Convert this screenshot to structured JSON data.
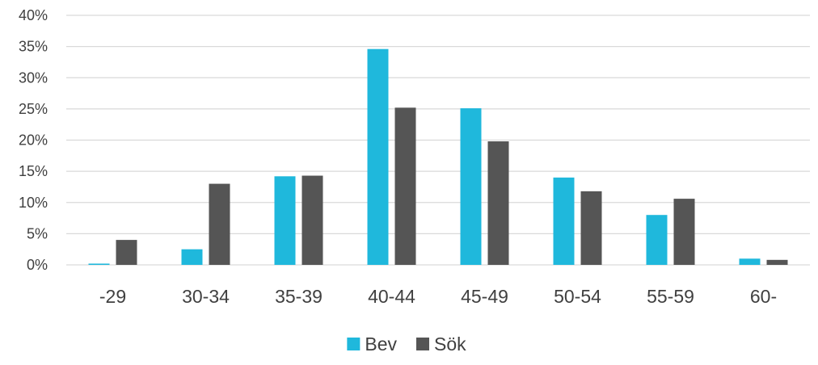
{
  "chart_data": {
    "type": "bar",
    "categories": [
      "-29",
      "30-34",
      "35-39",
      "40-44",
      "45-49",
      "50-54",
      "55-59",
      "60-"
    ],
    "series": [
      {
        "name": "Bev",
        "color": "#1fb8dc",
        "values": [
          0.2,
          2.5,
          14.2,
          34.6,
          25.1,
          14.0,
          8.0,
          1.0
        ]
      },
      {
        "name": "Sök",
        "color": "#555555",
        "values": [
          4.0,
          13.0,
          14.3,
          25.2,
          19.8,
          11.8,
          10.6,
          0.8
        ]
      }
    ],
    "ylim": [
      0,
      40
    ],
    "yticks": [
      0,
      5,
      10,
      15,
      20,
      25,
      30,
      35,
      40
    ],
    "ytick_labels": [
      "0%",
      "5%",
      "10%",
      "15%",
      "20%",
      "25%",
      "30%",
      "35%",
      "40%"
    ],
    "grid": true,
    "legend": {
      "position": "bottom",
      "entries": [
        "Bev",
        "Sök"
      ]
    },
    "title": "",
    "xlabel": "",
    "ylabel": ""
  }
}
